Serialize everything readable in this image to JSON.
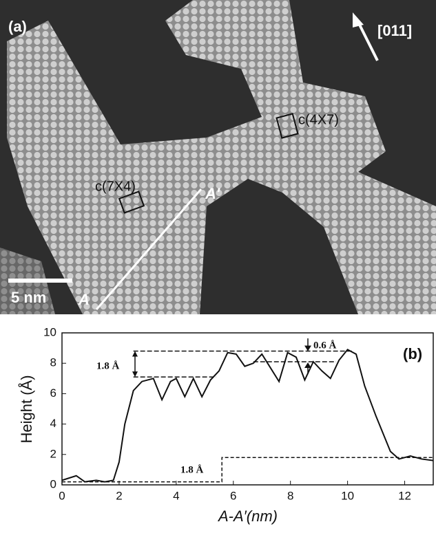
{
  "image": {
    "panel_label": "(a)",
    "direction": "[011]",
    "cells": [
      "c(4X7)",
      "c(7X4)"
    ],
    "line_ends": [
      "A'",
      "A"
    ],
    "scale_bar": "5 nm"
  },
  "chart_data": {
    "type": "line",
    "panel_label": "(b)",
    "y_label": "Height (Å)",
    "x_label": "A-A′(nm)",
    "xlim": [
      0,
      13
    ],
    "ylim": [
      0,
      10
    ],
    "xticks": [
      0,
      2,
      4,
      6,
      8,
      10,
      12
    ],
    "yticks": [
      0,
      2,
      4,
      6,
      8,
      10
    ],
    "series": [
      {
        "color": "#111111",
        "dash": false,
        "x": [
          0,
          0.5,
          0.8,
          1.2,
          1.5,
          1.8,
          2.0,
          2.2,
          2.5,
          2.8,
          3.2,
          3.5,
          3.8,
          4.0,
          4.3,
          4.6,
          4.9,
          5.2,
          5.5,
          5.8,
          6.1,
          6.4,
          6.7,
          7.0,
          7.3,
          7.6,
          7.9,
          8.2,
          8.5,
          8.8,
          9.1,
          9.4,
          9.7,
          10.0,
          10.3,
          10.6,
          11.0,
          11.5,
          11.8,
          12.2,
          12.6,
          13
        ],
        "values": [
          0.3,
          0.6,
          0.2,
          0.3,
          0.2,
          0.3,
          1.5,
          4.0,
          6.2,
          6.8,
          7.0,
          5.6,
          6.8,
          7.0,
          5.8,
          7.0,
          5.8,
          6.9,
          7.5,
          8.7,
          8.6,
          7.8,
          8.0,
          8.6,
          7.7,
          6.8,
          8.7,
          8.4,
          6.9,
          8.1,
          7.5,
          7.0,
          8.2,
          8.9,
          8.6,
          6.5,
          4.5,
          2.2,
          1.7,
          1.9,
          1.7,
          1.6
        ]
      },
      {
        "color": "#111111",
        "dash": true,
        "x": [
          0,
          5.6,
          5.6,
          13
        ],
        "values": [
          0.2,
          0.2,
          1.8,
          1.8
        ]
      }
    ],
    "reference_lines": [
      {
        "y": 8.8,
        "x": [
          2.5,
          10.2
        ]
      },
      {
        "y": 7.1,
        "x": [
          2.5,
          5.4
        ]
      },
      {
        "y": 8.1,
        "x": [
          6.7,
          9.6
        ]
      }
    ],
    "annotations": [
      "1.8 Å",
      "0.6 Å",
      "1.8 Å"
    ]
  }
}
